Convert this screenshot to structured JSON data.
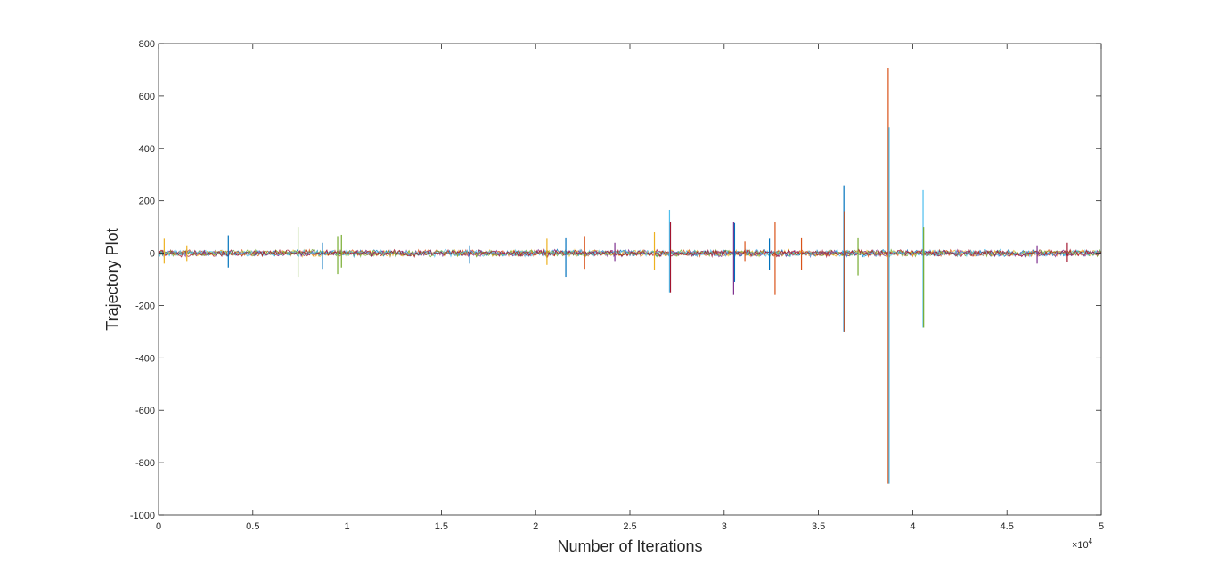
{
  "chart_data": {
    "type": "line",
    "title": "",
    "xlabel": "Number of Iterations",
    "ylabel": "Trajectory Plot",
    "x_exponent_label": "×10",
    "x_exponent_power": "4",
    "xlim": [
      0,
      50000
    ],
    "ylim": [
      -1000,
      800
    ],
    "x_ticks": [
      0,
      5000,
      10000,
      15000,
      20000,
      25000,
      30000,
      35000,
      40000,
      45000,
      50000
    ],
    "x_tick_labels": [
      "0",
      "0.5",
      "1",
      "1.5",
      "2",
      "2.5",
      "3",
      "3.5",
      "4",
      "4.5",
      "5"
    ],
    "y_ticks": [
      -1000,
      -800,
      -600,
      -400,
      -200,
      0,
      200,
      400,
      600,
      800
    ],
    "y_tick_labels": [
      "-1000",
      "-800",
      "-600",
      "-400",
      "-200",
      "0",
      "200",
      "400",
      "600",
      "800"
    ],
    "grid": false,
    "legend": "none",
    "series_colors": [
      "#0072BD",
      "#D95319",
      "#EDB120",
      "#7E2F8E",
      "#77AC30",
      "#4DBEEE",
      "#A2142F"
    ],
    "noise_amplitude": 15,
    "spikes": [
      {
        "x": 300,
        "max": 55,
        "min": -40,
        "series": 2
      },
      {
        "x": 1500,
        "max": 30,
        "min": -30,
        "series": 2
      },
      {
        "x": 3700,
        "max": 68,
        "min": -55,
        "series": 0
      },
      {
        "x": 7400,
        "max": 100,
        "min": -90,
        "series": 4
      },
      {
        "x": 8700,
        "max": 40,
        "min": -60,
        "series": 0
      },
      {
        "x": 9500,
        "max": 65,
        "min": -80,
        "series": 4
      },
      {
        "x": 9700,
        "max": 70,
        "min": -55,
        "series": 4
      },
      {
        "x": 16500,
        "max": 30,
        "min": -40,
        "series": 0
      },
      {
        "x": 20600,
        "max": 55,
        "min": -45,
        "series": 2
      },
      {
        "x": 21600,
        "max": 60,
        "min": -90,
        "series": 0
      },
      {
        "x": 22600,
        "max": 65,
        "min": -60,
        "series": 1
      },
      {
        "x": 24200,
        "max": 40,
        "min": -30,
        "series": 3
      },
      {
        "x": 26300,
        "max": 80,
        "min": -65,
        "series": 2
      },
      {
        "x": 27100,
        "max": 165,
        "min": -150,
        "series": 5
      },
      {
        "x": 27150,
        "max": 120,
        "min": -150,
        "series": 6
      },
      {
        "x": 30500,
        "max": 120,
        "min": -160,
        "series": 3
      },
      {
        "x": 30550,
        "max": 115,
        "min": -110,
        "series": 0
      },
      {
        "x": 31100,
        "max": 45,
        "min": -30,
        "series": 1
      },
      {
        "x": 32400,
        "max": 55,
        "min": -65,
        "series": 0
      },
      {
        "x": 32700,
        "max": 120,
        "min": -160,
        "series": 1
      },
      {
        "x": 34100,
        "max": 60,
        "min": -65,
        "series": 1
      },
      {
        "x": 36350,
        "max": 258,
        "min": -300,
        "series": 0
      },
      {
        "x": 36380,
        "max": 160,
        "min": -300,
        "series": 1
      },
      {
        "x": 37100,
        "max": 60,
        "min": -85,
        "series": 4
      },
      {
        "x": 38700,
        "max": 705,
        "min": -880,
        "series": 1
      },
      {
        "x": 38750,
        "max": 480,
        "min": -880,
        "series": 5
      },
      {
        "x": 40550,
        "max": 240,
        "min": -285,
        "series": 5
      },
      {
        "x": 40580,
        "max": 100,
        "min": -285,
        "series": 4
      },
      {
        "x": 46600,
        "max": 30,
        "min": -40,
        "series": 3
      },
      {
        "x": 48200,
        "max": 40,
        "min": -35,
        "series": 6
      }
    ]
  }
}
